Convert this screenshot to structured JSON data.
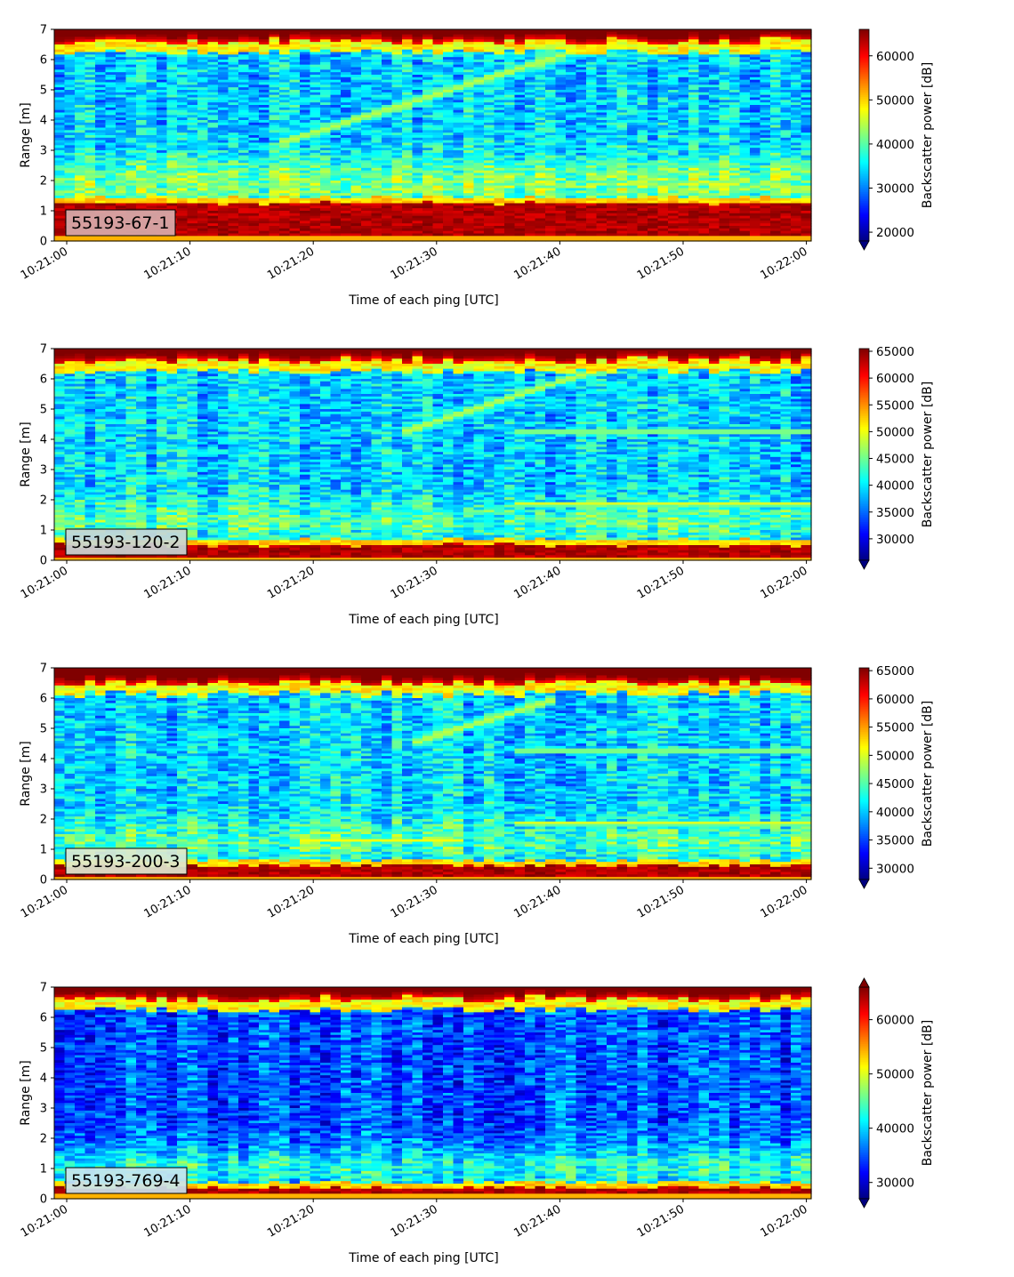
{
  "chart_data": [
    {
      "type": "heatmap",
      "colormap": "jet",
      "xlabel": "Time of each ping [UTC]",
      "ylabel": "Range [m]",
      "x_range": [
        "10:21:00",
        "10:22:00"
      ],
      "xticks": [
        "10:21:00",
        "10:21:10",
        "10:21:20",
        "10:21:30",
        "10:21:40",
        "10:21:50",
        "10:22:00"
      ],
      "ylim": [
        0,
        7
      ],
      "yticks": [
        "0",
        "1",
        "2",
        "3",
        "4",
        "5",
        "6",
        "7"
      ],
      "badge": "55193-67-1",
      "badge_color": "#d8acac",
      "colorbar": {
        "label": "Backscatter power [dB]",
        "range": [
          18000,
          66000
        ],
        "ticks": [
          "20000",
          "30000",
          "40000",
          "50000",
          "60000"
        ],
        "extend": "min"
      },
      "features": {
        "surface_band_m": [
          6.6,
          7.0
        ],
        "bottom_band_m": [
          0.2,
          1.25
        ],
        "rising_trace": {
          "t_start_s": 17,
          "t_end_s": 43,
          "range_start_m": 3.2,
          "range_end_m": 6.5
        }
      }
    },
    {
      "type": "heatmap",
      "colormap": "jet",
      "xlabel": "Time of each ping [UTC]",
      "ylabel": "Range [m]",
      "x_range": [
        "10:21:00",
        "10:22:00"
      ],
      "xticks": [
        "10:21:00",
        "10:21:10",
        "10:21:20",
        "10:21:30",
        "10:21:40",
        "10:21:50",
        "10:22:00"
      ],
      "ylim": [
        0,
        7
      ],
      "yticks": [
        "0",
        "1",
        "2",
        "3",
        "4",
        "5",
        "6",
        "7"
      ],
      "badge": "55193-120-2",
      "badge_color": "#c9d6d6",
      "colorbar": {
        "label": "Backscatter power [dB]",
        "range": [
          26000,
          65500
        ],
        "ticks": [
          "30000",
          "35000",
          "40000",
          "45000",
          "50000",
          "55000",
          "60000",
          "65000"
        ],
        "extend": "min"
      },
      "features": {
        "surface_band_m": [
          6.6,
          7.0
        ],
        "bottom_band_m": [
          0.1,
          0.5
        ],
        "rising_trace": {
          "t_start_s": 27,
          "t_end_s": 43,
          "range_start_m": 4.2,
          "range_end_m": 6.3
        }
      }
    },
    {
      "type": "heatmap",
      "colormap": "jet",
      "xlabel": "Time of each ping [UTC]",
      "ylabel": "Range [m]",
      "x_range": [
        "10:21:00",
        "10:22:00"
      ],
      "xticks": [
        "10:21:00",
        "10:21:10",
        "10:21:20",
        "10:21:30",
        "10:21:40",
        "10:21:50",
        "10:22:00"
      ],
      "ylim": [
        0,
        7
      ],
      "yticks": [
        "0",
        "1",
        "2",
        "3",
        "4",
        "5",
        "6",
        "7"
      ],
      "badge": "55193-200-3",
      "badge_color": "#dde8d0",
      "colorbar": {
        "label": "Backscatter power [dB]",
        "range": [
          28000,
          65500
        ],
        "ticks": [
          "30000",
          "35000",
          "40000",
          "45000",
          "50000",
          "55000",
          "60000",
          "65000"
        ],
        "extend": "min"
      },
      "features": {
        "surface_band_m": [
          6.5,
          7.0
        ],
        "bottom_band_m": [
          0.1,
          0.45
        ],
        "rising_trace": {
          "t_start_s": 28,
          "t_end_s": 40,
          "range_start_m": 4.5,
          "range_end_m": 6.0
        }
      }
    },
    {
      "type": "heatmap",
      "colormap": "jet",
      "xlabel": "Time of each ping [UTC]",
      "ylabel": "Range [m]",
      "x_range": [
        "10:21:00",
        "10:22:00"
      ],
      "xticks": [
        "10:21:00",
        "10:21:10",
        "10:21:20",
        "10:21:30",
        "10:21:40",
        "10:21:50",
        "10:22:00"
      ],
      "ylim": [
        0,
        7
      ],
      "yticks": [
        "0",
        "1",
        "2",
        "3",
        "4",
        "5",
        "6",
        "7"
      ],
      "badge": "55193-769-4",
      "badge_color": "#c9e4ee",
      "colorbar": {
        "label": "Backscatter power [dB]",
        "range": [
          27000,
          66000
        ],
        "ticks": [
          "30000",
          "40000",
          "50000",
          "60000"
        ],
        "extend": "both"
      },
      "features": {
        "surface_band_m": [
          6.6,
          6.95
        ],
        "bottom_band_m": [
          0.15,
          0.35
        ],
        "rising_trace": null
      }
    }
  ]
}
